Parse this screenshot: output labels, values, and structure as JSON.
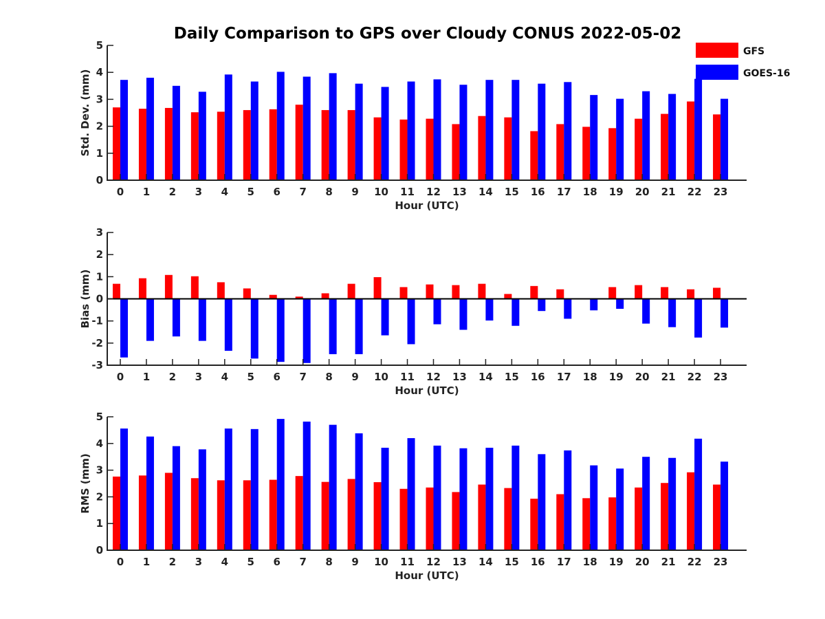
{
  "chart_data": {
    "title": "Daily Comparison to GPS over Cloudy CONUS 2022-05-02",
    "type": "bar",
    "legend": {
      "placement": "top-right",
      "entries": [
        {
          "name": "GFS",
          "color": "#ff0000"
        },
        {
          "name": "GOES-16",
          "color": "#0000ff"
        }
      ]
    },
    "panels": [
      {
        "id": "std",
        "ylabel": "Std. Dev. (mm)",
        "xlabel": "Hour (UTC)",
        "ylim": [
          0,
          5
        ],
        "yticks": [
          0,
          1,
          2,
          3,
          4,
          5
        ],
        "categories": [
          "0",
          "1",
          "2",
          "3",
          "4",
          "5",
          "6",
          "7",
          "8",
          "9",
          "10",
          "11",
          "12",
          "13",
          "14",
          "15",
          "16",
          "17",
          "18",
          "19",
          "20",
          "21",
          "22",
          "23"
        ],
        "series": [
          {
            "name": "GFS",
            "color": "#ff0000",
            "values": [
              2.7,
              2.65,
              2.68,
              2.52,
              2.54,
              2.6,
              2.63,
              2.8,
              2.6,
              2.6,
              2.33,
              2.25,
              2.28,
              2.08,
              2.38,
              2.33,
              1.82,
              2.08,
              1.98,
              1.93,
              2.28,
              2.46,
              2.92,
              2.44
            ]
          },
          {
            "name": "GOES-16",
            "color": "#0000ff",
            "values": [
              3.72,
              3.8,
              3.5,
              3.28,
              3.92,
              3.66,
              4.02,
              3.84,
              3.97,
              3.58,
              3.46,
              3.66,
              3.74,
              3.54,
              3.72,
              3.72,
              3.58,
              3.64,
              3.16,
              3.02,
              3.3,
              3.2,
              3.76,
              3.02
            ]
          }
        ]
      },
      {
        "id": "bias",
        "ylabel": "Bias (mm)",
        "xlabel": "Hour (UTC)",
        "ylim": [
          -3,
          3
        ],
        "yticks": [
          -3,
          -2,
          -1,
          0,
          1,
          2,
          3
        ],
        "categories": [
          "0",
          "1",
          "2",
          "3",
          "4",
          "5",
          "6",
          "7",
          "8",
          "9",
          "10",
          "11",
          "12",
          "13",
          "14",
          "15",
          "16",
          "17",
          "18",
          "19",
          "20",
          "21",
          "22",
          "23"
        ],
        "series": [
          {
            "name": "GFS",
            "color": "#ff0000",
            "values": [
              0.68,
              0.93,
              1.08,
              1.02,
              0.75,
              0.47,
              0.18,
              0.1,
              0.25,
              0.68,
              0.98,
              0.53,
              0.65,
              0.62,
              0.68,
              0.22,
              0.58,
              0.43,
              0.0,
              0.53,
              0.62,
              0.53,
              0.43,
              0.5
            ]
          },
          {
            "name": "GOES-16",
            "color": "#0000ff",
            "values": [
              -2.65,
              -1.9,
              -1.7,
              -1.9,
              -2.35,
              -2.7,
              -2.85,
              -2.9,
              -2.5,
              -2.5,
              -1.65,
              -2.05,
              -1.15,
              -1.4,
              -0.98,
              -1.22,
              -0.55,
              -0.9,
              -0.52,
              -0.45,
              -1.12,
              -1.28,
              -1.75,
              -1.3
            ]
          }
        ]
      },
      {
        "id": "rms",
        "ylabel": "RMS (mm)",
        "xlabel": "Hour (UTC)",
        "ylim": [
          0,
          5
        ],
        "yticks": [
          0,
          1,
          2,
          3,
          4,
          5
        ],
        "categories": [
          "0",
          "1",
          "2",
          "3",
          "4",
          "5",
          "6",
          "7",
          "8",
          "9",
          "10",
          "11",
          "12",
          "13",
          "14",
          "15",
          "16",
          "17",
          "18",
          "19",
          "20",
          "21",
          "22",
          "23"
        ],
        "series": [
          {
            "name": "GFS",
            "color": "#ff0000",
            "values": [
              2.76,
              2.8,
              2.9,
              2.7,
              2.62,
              2.62,
              2.64,
              2.78,
              2.56,
              2.67,
              2.55,
              2.3,
              2.35,
              2.18,
              2.46,
              2.33,
              1.93,
              2.1,
              1.95,
              1.98,
              2.35,
              2.52,
              2.92,
              2.46
            ]
          },
          {
            "name": "GOES-16",
            "color": "#0000ff",
            "values": [
              4.56,
              4.26,
              3.9,
              3.78,
              4.56,
              4.54,
              4.92,
              4.82,
              4.7,
              4.38,
              3.84,
              4.2,
              3.92,
              3.82,
              3.84,
              3.92,
              3.6,
              3.74,
              3.18,
              3.06,
              3.5,
              3.46,
              4.18,
              3.32
            ]
          }
        ]
      }
    ]
  }
}
